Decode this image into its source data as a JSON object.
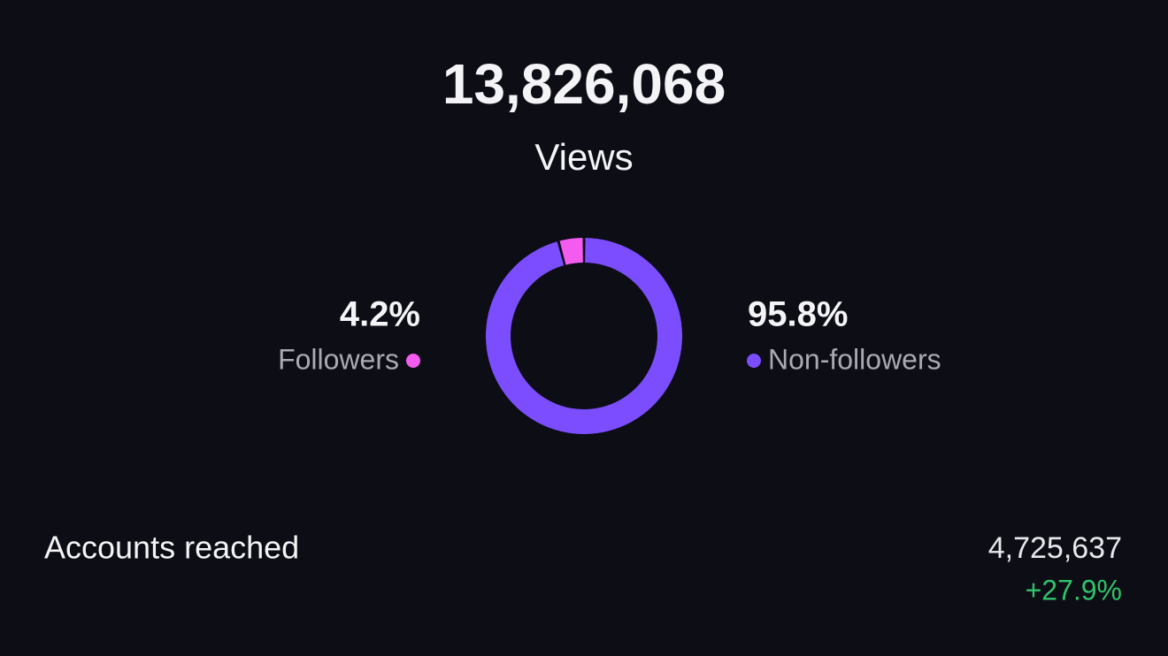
{
  "header": {
    "total": "13,826,068",
    "label": "Views"
  },
  "chart_data": {
    "type": "pie",
    "categories": [
      "Followers",
      "Non-followers"
    ],
    "values": [
      4.2,
      95.8
    ],
    "value_labels": [
      "4.2%",
      "95.8%"
    ],
    "colors": [
      "#f45cf0",
      "#7b4dff"
    ]
  },
  "metric": {
    "label": "Accounts reached",
    "value": "4,725,637",
    "change": "+27.9%"
  }
}
